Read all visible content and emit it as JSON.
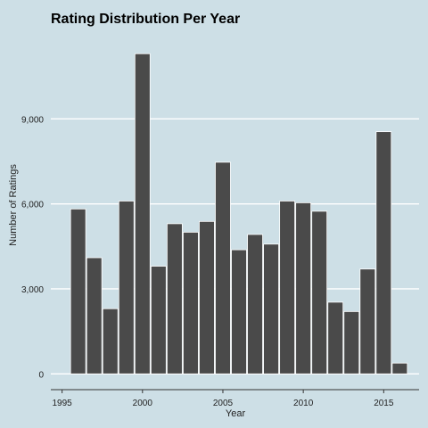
{
  "chart_data": {
    "type": "bar",
    "title": "Rating Distribution Per Year",
    "xlabel": "Year",
    "ylabel": "Number of Ratings",
    "x": [
      1996,
      1997,
      1998,
      1999,
      2000,
      2001,
      2002,
      2003,
      2004,
      2005,
      2006,
      2007,
      2008,
      2009,
      2010,
      2011,
      2012,
      2013,
      2014,
      2015,
      2016
    ],
    "values": [
      5820,
      4100,
      2300,
      6100,
      11300,
      3800,
      5300,
      5000,
      5380,
      7470,
      4380,
      4920,
      4580,
      6100,
      6040,
      5740,
      2530,
      2200,
      3700,
      8550,
      380
    ],
    "xlim": [
      1994.3,
      2017.2
    ],
    "ylim": [
      -400,
      12000
    ],
    "x_ticks": [
      {
        "value": 1995,
        "label": "1995"
      },
      {
        "value": 2000,
        "label": "2000"
      },
      {
        "value": 2005,
        "label": "2005"
      },
      {
        "value": 2010,
        "label": "2010"
      },
      {
        "value": 2015,
        "label": "2015"
      }
    ],
    "y_ticks": [
      {
        "value": 0,
        "label": "0"
      },
      {
        "value": 3000,
        "label": "3,000"
      },
      {
        "value": 6000,
        "label": "6,000"
      },
      {
        "value": 9000,
        "label": "9,000"
      }
    ],
    "grid": "horizontal",
    "colors": {
      "bar": "#4a4a4a",
      "background": "#cddfe6",
      "grid": "#ffffff"
    }
  }
}
